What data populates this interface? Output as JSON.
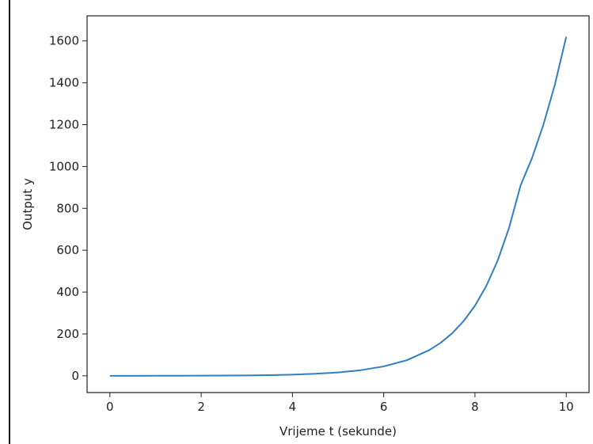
{
  "chart_data": {
    "type": "line",
    "xlabel": "Vrijeme t (sekunde)",
    "ylabel": "Output y",
    "xlim": [
      -0.5,
      10.5
    ],
    "ylim": [
      -80,
      1720
    ],
    "xticks": [
      0,
      2,
      4,
      6,
      8,
      10
    ],
    "yticks": [
      0,
      200,
      400,
      600,
      800,
      1000,
      1200,
      1400,
      1600
    ],
    "grid": false,
    "series": [
      {
        "color": "#2f7fc1",
        "x": [
          0,
          0.5,
          1,
          1.5,
          2,
          2.5,
          3,
          3.5,
          4,
          4.5,
          5,
          5.5,
          6,
          6.5,
          7,
          7.25,
          7.5,
          7.75,
          8,
          8.25,
          8.5,
          8.75,
          9,
          9.25,
          9.5,
          9.75,
          10
        ],
        "y": [
          0.0,
          0.1,
          0.2,
          0.4,
          0.7,
          1.2,
          2.0,
          3.4,
          5.7,
          9.6,
          16,
          27,
          45,
          74,
          123,
          158,
          203,
          261,
          335,
          430,
          552,
          709,
          910,
          1040,
          1200,
          1390,
          1620
        ]
      }
    ]
  }
}
